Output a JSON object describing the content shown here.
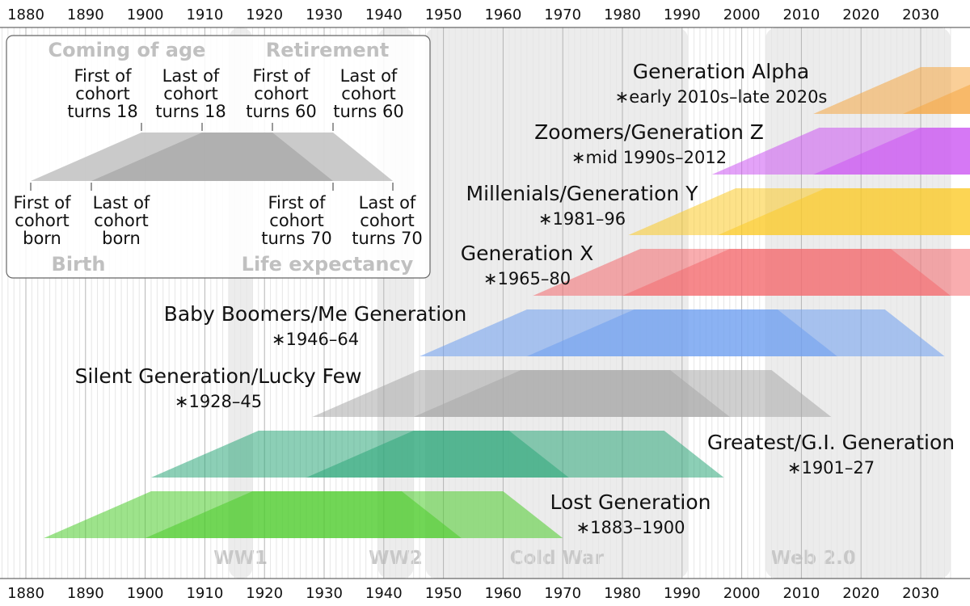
{
  "chart_data": {
    "type": "timeline",
    "x_axis": {
      "range": [
        1875,
        2035
      ],
      "ticks": [
        1880,
        1890,
        1900,
        1910,
        1920,
        1930,
        1940,
        1950,
        1960,
        1970,
        1980,
        1990,
        2000,
        2010,
        2020,
        2030
      ],
      "minor_grid_step": 1,
      "placement": "top and bottom"
    },
    "events": [
      {
        "name": "WW1",
        "start": 1914,
        "end": 1918
      },
      {
        "name": "WW2",
        "start": 1939,
        "end": 1945
      },
      {
        "name": "Cold War",
        "start": 1947,
        "end": 1991
      },
      {
        "name": "Web 2.0",
        "start": 2004,
        "end": 2035
      }
    ],
    "generations": [
      {
        "name": "Lost Generation",
        "range": "∗1883–1900",
        "birth_start": 1883,
        "birth_end": 1900,
        "color": "#4ccc2c"
      },
      {
        "name": "Greatest/G.I. Generation",
        "range": "∗1901–27",
        "birth_start": 1901,
        "birth_end": 1927,
        "color": "#2ea87a"
      },
      {
        "name": "Silent Generation/Lucky Few",
        "range": "∗1928–45",
        "birth_start": 1928,
        "birth_end": 1945,
        "color": "#a8a8a8"
      },
      {
        "name": "Baby Boomers/Me Generation",
        "range": "∗1946–64",
        "birth_start": 1946,
        "birth_end": 1964,
        "color": "#6e9ff0"
      },
      {
        "name": "Generation X",
        "range": "∗1965–80",
        "birth_start": 1965,
        "birth_end": 1980,
        "color": "#f46a6e"
      },
      {
        "name": "Millenials/Generation Y",
        "range": "∗1981–96",
        "birth_start": 1981,
        "birth_end": 1996,
        "color": "#fbcb28"
      },
      {
        "name": "Zoomers/Generation Z",
        "range": "∗mid 1990s–2012",
        "birth_start": 1995,
        "birth_end": 2012,
        "color": "#cc55f2"
      },
      {
        "name": "Generation Alpha",
        "range": "∗early 2010s–late 2020s",
        "birth_start": 2012,
        "birth_end": 2027,
        "color": "#f6a844"
      }
    ],
    "cohort_ages": {
      "coming_of_age": 18,
      "retirement": 60,
      "life_expectancy": 70
    },
    "legend": {
      "placement": "top-left",
      "headings": {
        "coming_of_age": "Coming of age",
        "retirement": "Retirement",
        "birth": "Birth",
        "life_expectancy": "Life expectancy"
      },
      "top_labels": [
        [
          "First of",
          "cohort",
          "turns 18"
        ],
        [
          "Last of",
          "cohort",
          "turns 18"
        ],
        [
          "First of",
          "cohort",
          "turns 60"
        ],
        [
          "Last of",
          "cohort",
          "turns 60"
        ]
      ],
      "bottom_labels": [
        [
          "First of",
          "cohort",
          "born"
        ],
        [
          "Last of",
          "cohort",
          "born"
        ],
        [
          "First of",
          "cohort",
          "turns 70"
        ],
        [
          "Last of",
          "cohort",
          "turns 70"
        ]
      ]
    }
  }
}
